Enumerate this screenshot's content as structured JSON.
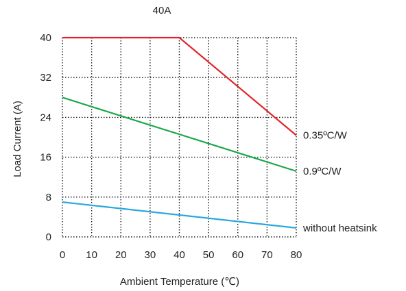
{
  "chart_data": {
    "type": "line",
    "title": "40A",
    "xlabel": "Ambient Temperature (℃)",
    "ylabel": "Load Current (A)",
    "xlim": [
      0,
      80
    ],
    "ylim": [
      0,
      40
    ],
    "x_ticks": [
      0,
      10,
      20,
      30,
      40,
      50,
      60,
      70,
      80
    ],
    "y_ticks": [
      0,
      8,
      16,
      24,
      32,
      40
    ],
    "grid": true,
    "series": [
      {
        "name": "0.35ºC/W",
        "color": "#e0252c",
        "x": [
          0,
          40,
          80
        ],
        "y": [
          40,
          40,
          20.4
        ]
      },
      {
        "name": "0.9ºC/W",
        "color": "#1aa84b",
        "x": [
          0,
          80
        ],
        "y": [
          28,
          13.2
        ]
      },
      {
        "name": "without heatsink",
        "color": "#2aa7df",
        "x": [
          0,
          80
        ],
        "y": [
          7,
          1.8
        ]
      }
    ]
  }
}
